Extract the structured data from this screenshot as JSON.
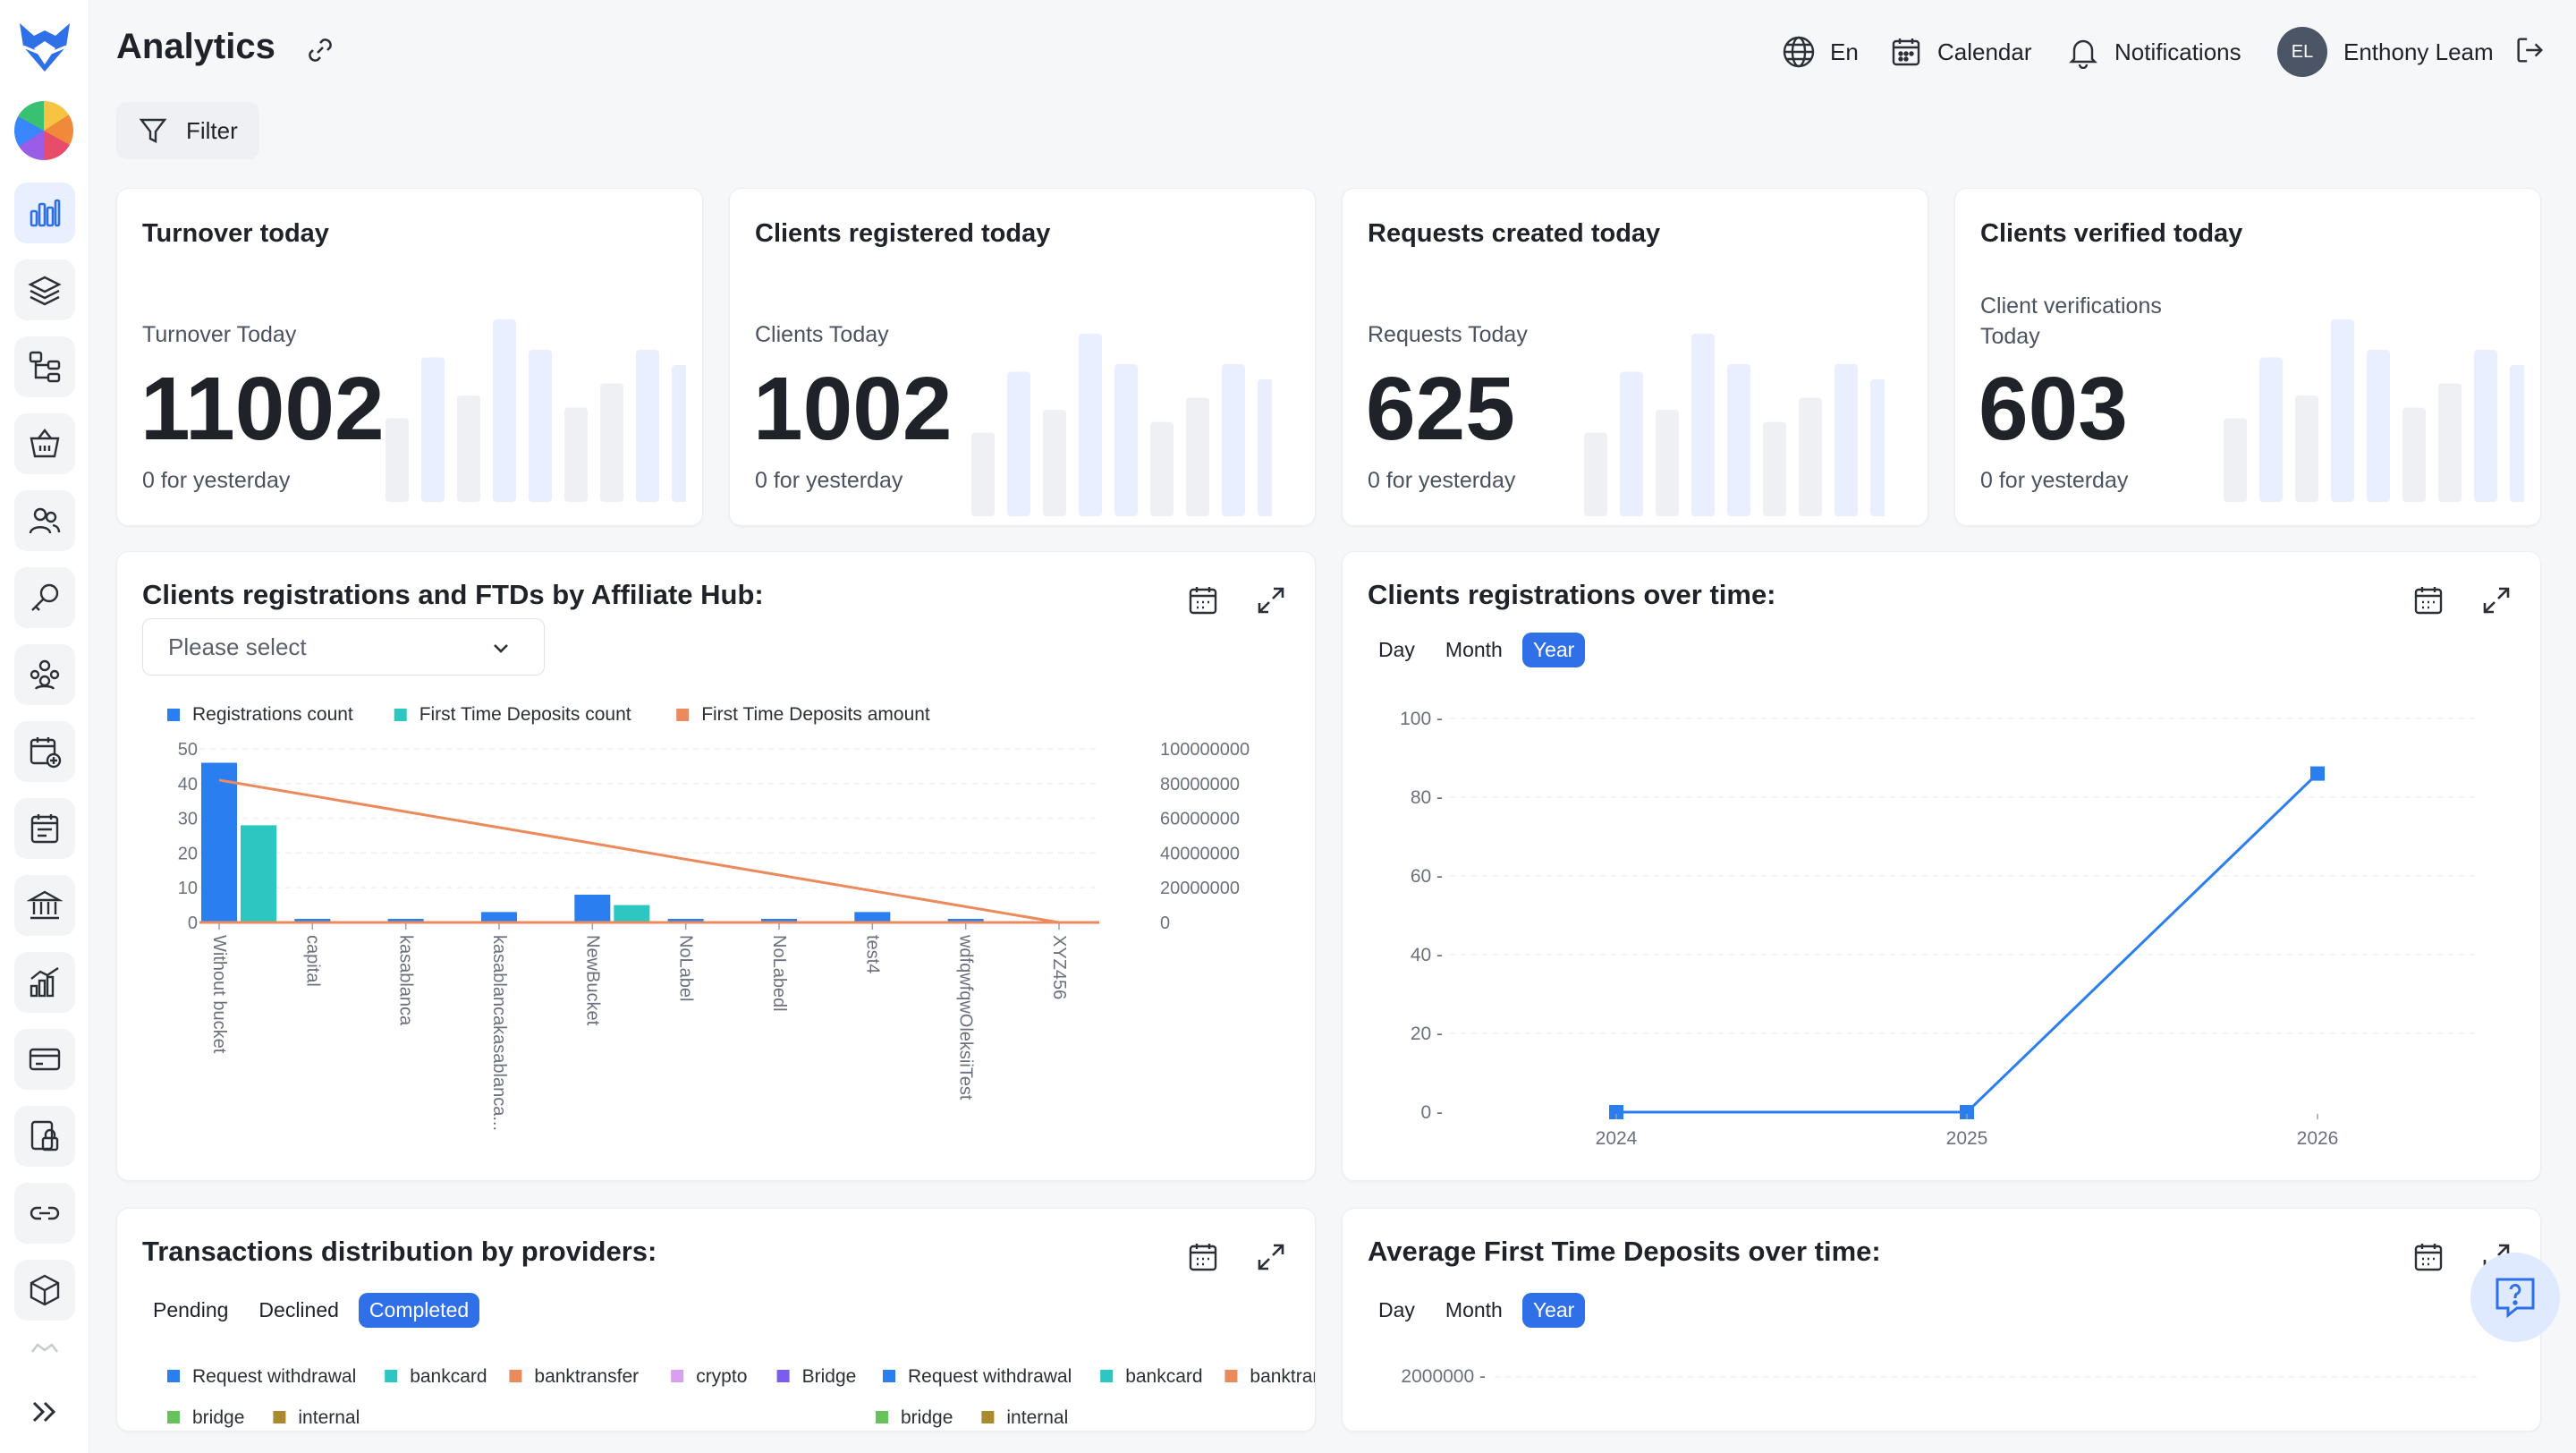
{
  "header": {
    "title": "Analytics",
    "language": "En",
    "calendar_label": "Calendar",
    "notifications_label": "Notifications",
    "user_initials": "EL",
    "user_name": "Enthony Leam"
  },
  "filter_label": "Filter",
  "stats": [
    {
      "title": "Turnover today",
      "label": "Turnover Today",
      "value": "11002",
      "sub": "0 for yesterday"
    },
    {
      "title": "Clients registered today",
      "label": "Clients Today",
      "value": "1002",
      "sub": "0 for yesterday"
    },
    {
      "title": "Requests created today",
      "label": "Requests Today",
      "value": "625",
      "sub": "0 for yesterday"
    },
    {
      "title": "Clients verified today",
      "label": "Client verifications Today",
      "value": "603",
      "sub": "0 for yesterday"
    }
  ],
  "affiliate_panel": {
    "title": "Clients registrations and FTDs by Affiliate Hub:",
    "select_placeholder": "Please select"
  },
  "registrations_panel": {
    "title": "Clients registrations over time:",
    "periods": [
      "Day",
      "Month",
      "Year"
    ],
    "active_period": "Year"
  },
  "transactions_panel": {
    "title": "Transactions distribution by providers:",
    "statuses": [
      "Pending",
      "Declined",
      "Completed"
    ],
    "active_status": "Completed"
  },
  "ftd_panel": {
    "title": "Average First Time Deposits over time:",
    "periods": [
      "Day",
      "Month",
      "Year"
    ],
    "active_period": "Year"
  },
  "colors": {
    "accent": "#2f6fe8",
    "registrations": "#2a7ef0",
    "ftd_count": "#2cc7c0",
    "ftd_amount": "#eb8a5c"
  },
  "chart_data": [
    {
      "type": "bar",
      "categories": [
        "Without bucket",
        "capital",
        "kasablanca",
        "kasablancakasablanca...",
        "NewBucket",
        "NoLabel",
        "NoLabedl",
        "test4",
        "wdfqwfqwOleksiiTest",
        "XYZ456"
      ],
      "series": [
        {
          "name": "Registrations count",
          "type": "bar",
          "axis": "left",
          "values": [
            46,
            1,
            1,
            3,
            8,
            1,
            1,
            3,
            1,
            0
          ]
        },
        {
          "name": "First Time Deposits count",
          "type": "bar",
          "axis": "left",
          "values": [
            28,
            0,
            0,
            0,
            5,
            0,
            0,
            0,
            0,
            0
          ]
        },
        {
          "name": "First Time Deposits amount",
          "type": "line",
          "axis": "right",
          "values": [
            82000000,
            72900000,
            63800000,
            54700000,
            45600000,
            36400000,
            27300000,
            18200000,
            9100000,
            0
          ]
        }
      ],
      "y_ticks": [
        "0",
        "10",
        "20",
        "30",
        "40",
        "50"
      ],
      "y2_ticks": [
        "0",
        "20000000",
        "40000000",
        "60000000",
        "80000000",
        "100000000"
      ],
      "ylim": [
        0,
        50
      ],
      "y2lim": [
        0,
        100000000
      ],
      "legend": "top-left",
      "grid": true
    },
    {
      "type": "line",
      "x": [
        "2024",
        "2025",
        "2026"
      ],
      "values": [
        0,
        0,
        86
      ],
      "y_ticks": [
        "0 -",
        "20 -",
        "40 -",
        "60 -",
        "80 -",
        "100 -"
      ],
      "ylim": [
        0,
        100
      ],
      "grid": true
    },
    {
      "type": "bar",
      "legend_items": [
        {
          "name": "Request withdrawal",
          "color": "#2a7ef0"
        },
        {
          "name": "bankcard",
          "color": "#2cc7c0"
        },
        {
          "name": "banktransfer",
          "color": "#eb8a5c"
        },
        {
          "name": "crypto",
          "color": "#d8a0ee"
        },
        {
          "name": "Bridge",
          "color": "#7a5cf0"
        },
        {
          "name": "Request withdrawal",
          "color": "#2a7ef0"
        },
        {
          "name": "bankcard",
          "color": "#2cc7c0"
        },
        {
          "name": "banktransfe",
          "color": "#eb8a5c"
        },
        {
          "name": "bridge",
          "color": "#66c25b"
        },
        {
          "name": "internal",
          "color": "#a98b2d"
        },
        {
          "name": "bridge",
          "color": "#66c25b"
        },
        {
          "name": "internal",
          "color": "#a98b2d"
        }
      ]
    },
    {
      "type": "line",
      "y_ticks": [
        "2000000 -"
      ]
    }
  ]
}
